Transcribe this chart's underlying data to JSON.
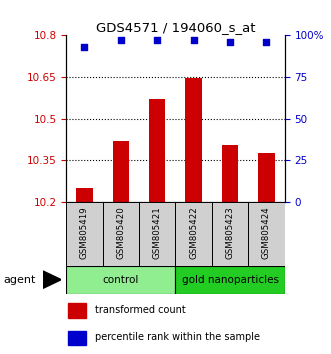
{
  "title": "GDS4571 / 194060_s_at",
  "samples": [
    "GSM805419",
    "GSM805420",
    "GSM805421",
    "GSM805422",
    "GSM805423",
    "GSM805424"
  ],
  "bar_values": [
    10.25,
    10.42,
    10.57,
    10.645,
    10.405,
    10.375
  ],
  "percentile_values": [
    93,
    97,
    97,
    97,
    96,
    96
  ],
  "ylim_left": [
    10.2,
    10.8
  ],
  "ylim_right": [
    0,
    100
  ],
  "yticks_left": [
    10.2,
    10.35,
    10.5,
    10.65,
    10.8
  ],
  "ytick_labels_left": [
    "10.2",
    "10.35",
    "10.5",
    "10.65",
    "10.8"
  ],
  "yticks_right": [
    0,
    25,
    50,
    75,
    100
  ],
  "ytick_labels_right": [
    "0",
    "25",
    "50",
    "75",
    "100%"
  ],
  "bar_color": "#cc0000",
  "dot_color": "#0000cc",
  "bar_width": 0.45,
  "control_color": "#90ee90",
  "gold_color": "#22cc22",
  "agent_label": "agent",
  "legend_red_label": "transformed count",
  "legend_blue_label": "percentile rank within the sample",
  "grid_ticks": [
    10.35,
    10.5,
    10.65
  ]
}
